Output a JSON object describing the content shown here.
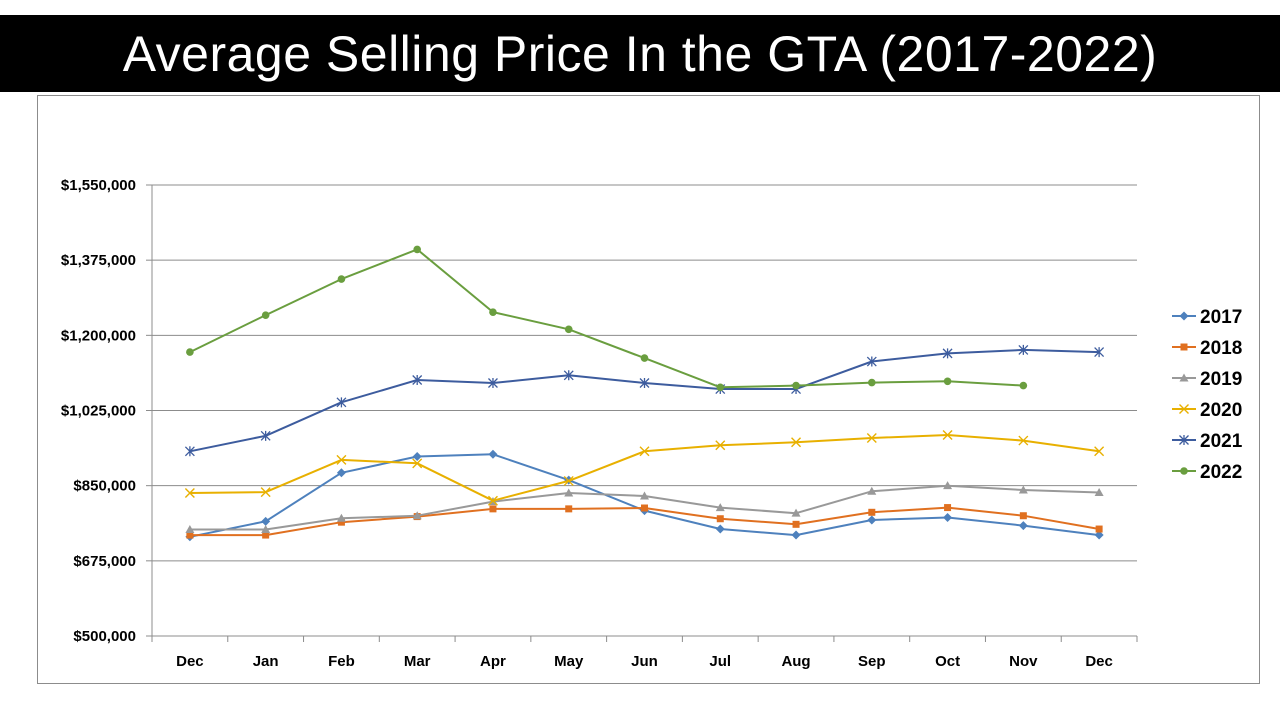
{
  "title": "Average Selling Price In the GTA (2017-2022)",
  "chart_data": {
    "type": "line",
    "title": "Average Selling Price In the GTA (2017-2022)",
    "categories": [
      "Dec",
      "Jan",
      "Feb",
      "Mar",
      "Apr",
      "May",
      "Jun",
      "Jul",
      "Aug",
      "Sep",
      "Oct",
      "Nov",
      "Dec"
    ],
    "ylim": [
      500000,
      1550000
    ],
    "yticks": [
      500000,
      675000,
      850000,
      1025000,
      1200000,
      1375000,
      1550000
    ],
    "ytick_labels": [
      "$500,000",
      "$675,000",
      "$850,000",
      "$1,025,000",
      "$1,200,000",
      "$1,375,000",
      "$1,550,000"
    ],
    "grid": true,
    "legend_position": "right",
    "series": [
      {
        "name": "2017",
        "color": "#4E81BD",
        "marker": "diamond",
        "values": [
          731000,
          767000,
          880000,
          918000,
          923000,
          863000,
          792000,
          749000,
          735000,
          770000,
          776000,
          757000,
          735000
        ]
      },
      {
        "name": "2018",
        "color": "#E07020",
        "marker": "square",
        "values": [
          735000,
          735000,
          765000,
          778000,
          796000,
          796000,
          798000,
          773000,
          760000,
          788000,
          799000,
          780000,
          749000
        ]
      },
      {
        "name": "2019",
        "color": "#999999",
        "marker": "triangle",
        "values": [
          748000,
          748000,
          774000,
          780000,
          813000,
          833000,
          826000,
          799000,
          786000,
          837000,
          850000,
          840000,
          834000
        ]
      },
      {
        "name": "2020",
        "color": "#E8B000",
        "marker": "x",
        "values": [
          833000,
          835000,
          910000,
          902000,
          815000,
          861000,
          930000,
          944000,
          951000,
          961000,
          968000,
          955000,
          930000
        ]
      },
      {
        "name": "2021",
        "color": "#3D5C9E",
        "marker": "asterisk",
        "values": [
          930000,
          966000,
          1044000,
          1096000,
          1089000,
          1107000,
          1089000,
          1075000,
          1075000,
          1139000,
          1158000,
          1166000,
          1161000
        ]
      },
      {
        "name": "2022",
        "color": "#6A9E3F",
        "marker": "circle",
        "values": [
          1161000,
          1247000,
          1331000,
          1400000,
          1254000,
          1214000,
          1147000,
          1079000,
          1083000,
          1090000,
          1093000,
          1083000,
          null
        ]
      }
    ]
  }
}
